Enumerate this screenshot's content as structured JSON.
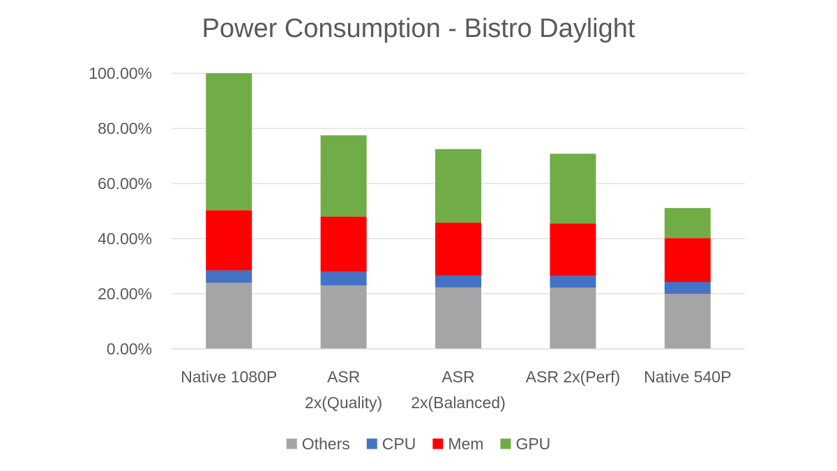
{
  "chart_data": {
    "type": "stacked-bar",
    "title": "Power Consumption  - Bistro Daylight",
    "categories": [
      [
        "Native 1080P"
      ],
      [
        "ASR",
        "2x(Quality)"
      ],
      [
        "ASR",
        "2x(Balanced)"
      ],
      [
        "ASR 2x(Perf)"
      ],
      [
        "Native 540P"
      ]
    ],
    "series": [
      {
        "name": "Others",
        "color": "#a5a5a5",
        "values": [
          24.0,
          23.0,
          22.3,
          22.2,
          20.0
        ]
      },
      {
        "name": "CPU",
        "color": "#4472c4",
        "values": [
          4.5,
          5.0,
          4.3,
          4.3,
          4.3
        ]
      },
      {
        "name": "Mem",
        "color": "#ff0000",
        "values": [
          21.8,
          20.0,
          19.2,
          19.0,
          15.9
        ]
      },
      {
        "name": "GPU",
        "color": "#70ad47",
        "values": [
          49.7,
          29.5,
          26.7,
          25.3,
          10.9
        ]
      }
    ],
    "yticks": [
      "0.00%",
      "20.00%",
      "40.00%",
      "60.00%",
      "80.00%",
      "100.00%"
    ],
    "ylim": [
      0,
      100
    ],
    "xlabel": "",
    "ylabel": "",
    "grid": true,
    "legend_position": "bottom"
  }
}
